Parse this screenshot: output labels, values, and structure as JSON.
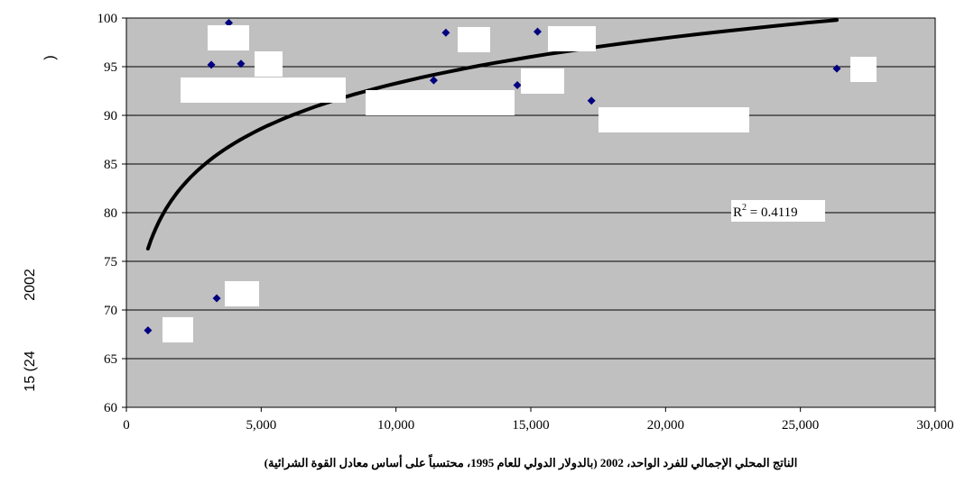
{
  "chart_data": {
    "type": "scatter",
    "title": "",
    "xlabel": "الناتج المحلي الإجمالي للفرد الواحد، 2002 (بالدولار الدولي للعام 1995، محتسباً على أساس معادل القوة الشرائية)",
    "ylabel_fragments": [
      ")",
      "2002",
      "15 (24"
    ],
    "xlim": [
      0,
      30000
    ],
    "ylim": [
      60,
      100
    ],
    "x_ticks": [
      0,
      5000,
      10000,
      15000,
      20000,
      25000,
      30000
    ],
    "x_tick_labels": [
      "0",
      "5,000",
      "10,000",
      "15,000",
      "20,000",
      "25,000",
      "30,000"
    ],
    "y_ticks": [
      60,
      65,
      70,
      75,
      80,
      85,
      90,
      95,
      100
    ],
    "y_tick_labels": [
      "60",
      "65",
      "70",
      "75",
      "80",
      "85",
      "90",
      "95",
      "100"
    ],
    "grid": "horizontal",
    "background": "#c0c0c0",
    "marker_color": "#000080",
    "points": [
      {
        "x": 800,
        "y": 67.9
      },
      {
        "x": 3350,
        "y": 71.2
      },
      {
        "x": 3150,
        "y": 95.2
      },
      {
        "x": 3800,
        "y": 99.5
      },
      {
        "x": 4250,
        "y": 95.3
      },
      {
        "x": 11400,
        "y": 93.6
      },
      {
        "x": 11850,
        "y": 98.5
      },
      {
        "x": 14500,
        "y": 93.1
      },
      {
        "x": 15250,
        "y": 98.6
      },
      {
        "x": 17250,
        "y": 91.5
      },
      {
        "x": 26350,
        "y": 94.8
      }
    ],
    "trendline": {
      "type": "logarithmic",
      "r2_label": "R",
      "r2_sup": "2",
      "r2_value": " = 0.4119",
      "x_from": 800,
      "x_to": 26350,
      "y_from": 76.3,
      "y_to": 99.8
    }
  }
}
